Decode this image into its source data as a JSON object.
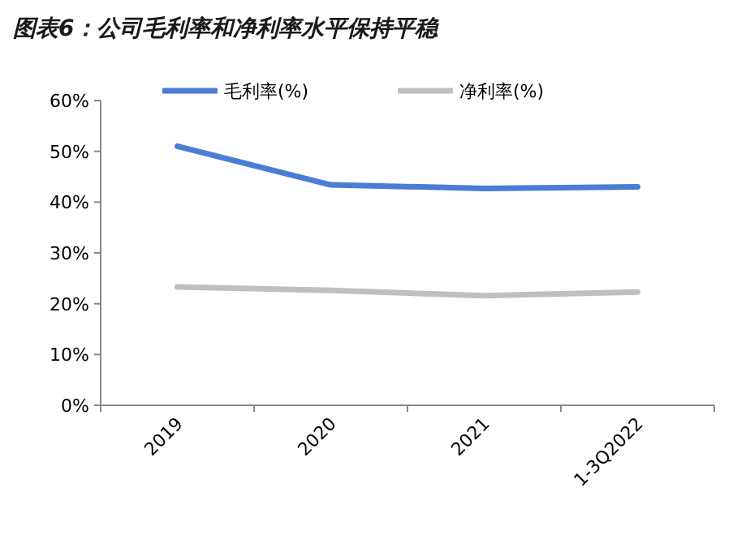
{
  "chart_data": {
    "type": "line",
    "title": "图表6：公司毛利率和净利率水平保持平稳",
    "categories": [
      "2019",
      "2020",
      "2021",
      "1-3Q2022"
    ],
    "series": [
      {
        "name": "毛利率(%)",
        "color": "#4a7ed6",
        "values": [
          51.0,
          43.4,
          42.7,
          43.0
        ]
      },
      {
        "name": "净利率(%)",
        "color": "#bfbfbf",
        "values": [
          23.3,
          22.6,
          21.6,
          22.3
        ]
      }
    ],
    "ylim": [
      0,
      60
    ],
    "yticks": [
      {
        "value": 0,
        "label": "0%"
      },
      {
        "value": 10,
        "label": "10%"
      },
      {
        "value": 20,
        "label": "20%"
      },
      {
        "value": 30,
        "label": "30%"
      },
      {
        "value": 40,
        "label": "40%"
      },
      {
        "value": 50,
        "label": "50%"
      },
      {
        "value": 60,
        "label": "60%"
      }
    ],
    "legend": "top",
    "grid": false,
    "marker": "none",
    "line_style": "solid"
  }
}
